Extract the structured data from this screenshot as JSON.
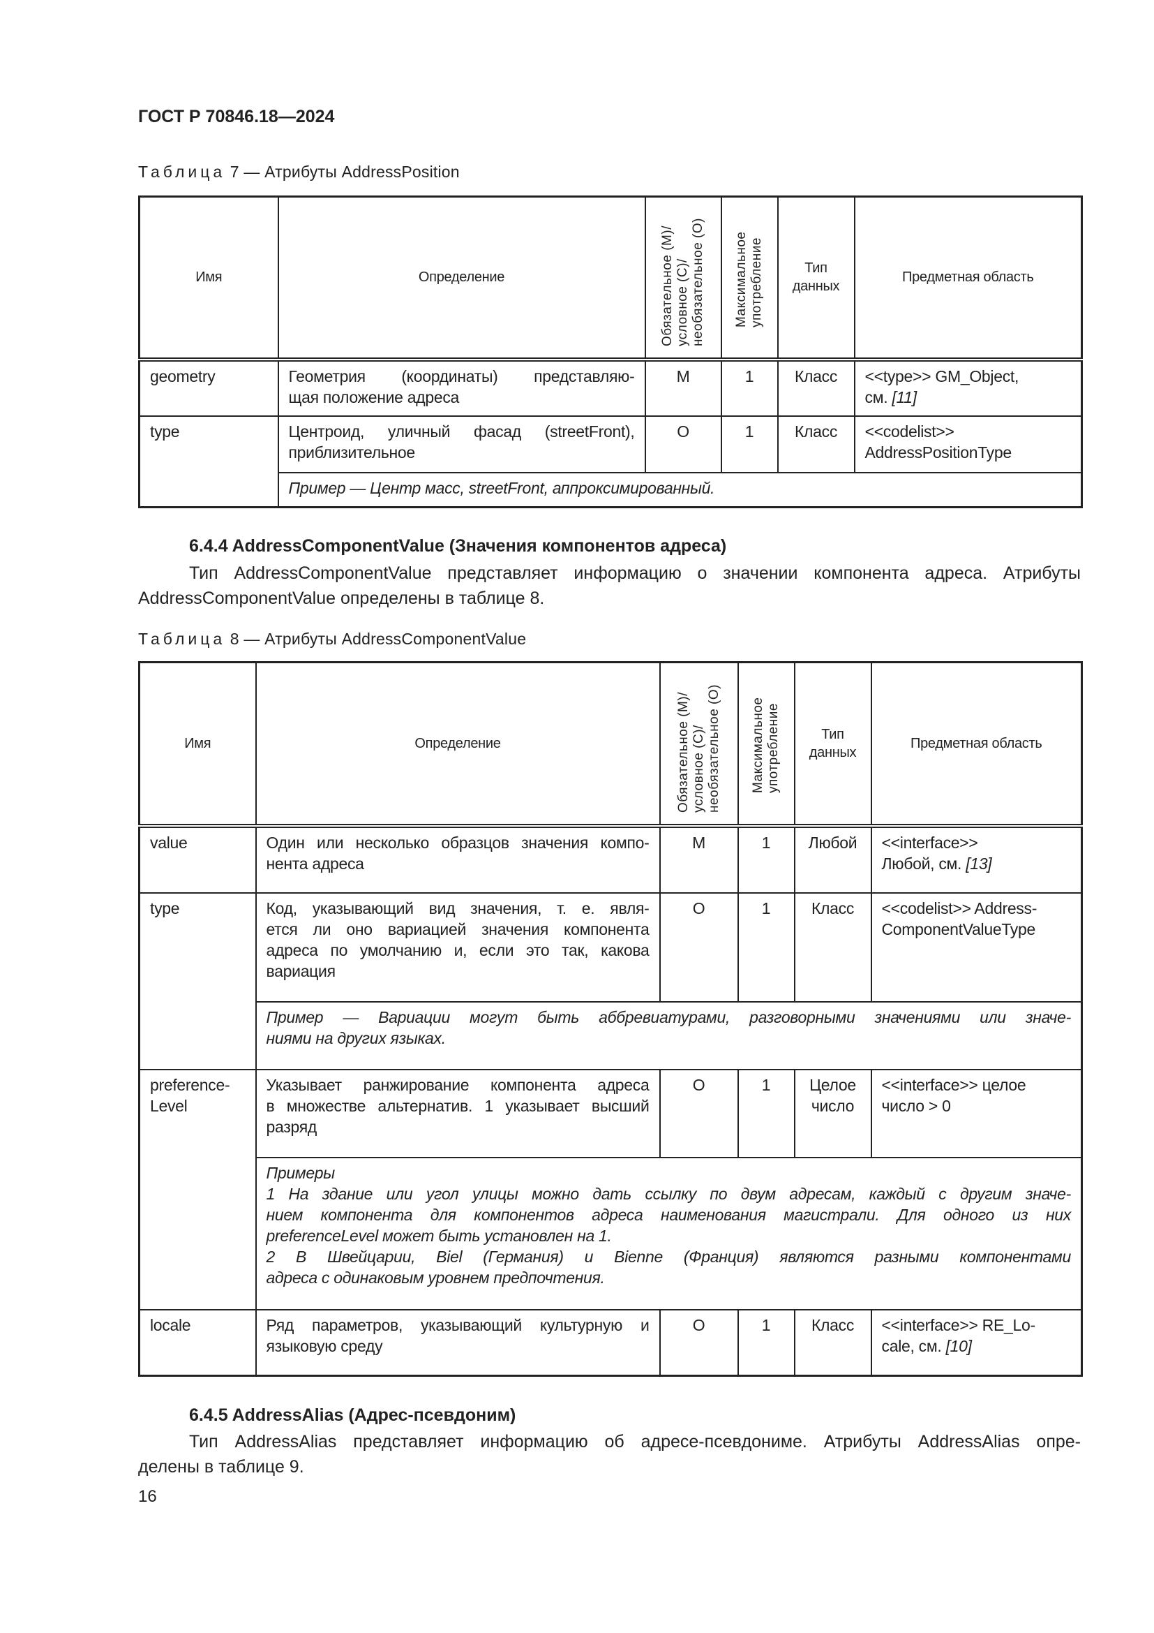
{
  "header": {
    "doc_id": "ГОСТ Р 70846.18—2024"
  },
  "table7": {
    "caption_word": "Таблица",
    "caption_rest": " 7 — Атрибуты AddressPosition",
    "columns": [
      "Имя",
      "Определение",
      "Обязательное (M)/ условное (C)/ необязательное (O)",
      "Максимальное употребление",
      "Тип данных",
      "Предметная область"
    ],
    "rows": [
      {
        "name": "geometry",
        "definition": [
          "Геометрия (координаты) представляю-",
          "щая положение адреса"
        ],
        "obligation": "M",
        "max": "1",
        "type": "Класс",
        "domain": [
          "<<type>> GM_Object,",
          "см. "
        ],
        "domain_ref": "[11]"
      },
      {
        "name": "type",
        "definition": [
          "Центроид, уличный фасад (streetFront),",
          "приблизительное"
        ],
        "obligation": "O",
        "max": "1",
        "type": "Класс",
        "domain": [
          "<<codelist>>",
          "AddressPositionType"
        ],
        "example": [
          "Пример — Центр масс, streetFront, аппроксимированный."
        ]
      }
    ]
  },
  "section_644": {
    "title": "6.4.4 AddressComponentValue (Значения компонентов адреса)",
    "lines": [
      "Тип AddressComponentValue представляет информацию о значении компонента адреса. Атрибуты",
      "AddressComponentValue определены в таблице 8."
    ]
  },
  "table8": {
    "caption_word": "Таблица",
    "caption_rest": " 8 — Атрибуты AddressComponentValue",
    "columns": [
      "Имя",
      "Определение",
      "Обязательное (M)/ условное (C)/ необязательное (O)",
      "Максимальное употребление",
      "Тип данных",
      "Предметная область"
    ],
    "rows": [
      {
        "name": "value",
        "definition": [
          "Один или несколько образцов значения компо-",
          "нента адреса"
        ],
        "obligation": "M",
        "max": "1",
        "type": "Любой",
        "domain": [
          "<<interface>>",
          "Любой, см. "
        ],
        "domain_ref": "[13]"
      },
      {
        "name": "type",
        "definition": [
          "Код, указывающий вид значения, т. е. явля-",
          "ется ли оно вариацией значения компонента",
          "адреса по умолчанию и, если это так, какова",
          "вариация"
        ],
        "obligation": "O",
        "max": "1",
        "type": "Класс",
        "domain": [
          "<<codelist>> Address-",
          "ComponentValueType"
        ],
        "example": [
          "Пример — Вариации могут быть аббревиатурами, разговорными значениями или значе-",
          "ниями на других языках."
        ]
      },
      {
        "name": "preference-Level",
        "definition": [
          "Указывает ранжирование компонента адреса",
          "в множестве альтернатив. 1 указывает высший",
          "разряд"
        ],
        "obligation": "O",
        "max": "1",
        "type": "Целое число",
        "domain": [
          "<<interface>> целое",
          "число > 0"
        ],
        "example": [
          "Примеры",
          "1 На здание или угол улицы можно дать ссылку по двум адресам, каждый с другим значе-",
          "нием компонента для компонентов адреса наименования магистрали. Для одного из них",
          "preferenceLevel может быть установлен на 1.",
          "2 В Швейцарии, Biel (Германия) и Bienne (Франция) являются разными компонентами",
          "адреса с одинаковым уровнем предпочтения."
        ]
      },
      {
        "name": "locale",
        "definition": [
          "Ряд параметров, указывающий культурную и",
          "языковую среду"
        ],
        "obligation": "O",
        "max": "1",
        "type": "Класс",
        "domain": [
          "<<interface>> RE_Lo-",
          "cale, см. "
        ],
        "domain_ref": "[10]"
      }
    ]
  },
  "section_645": {
    "title": "6.4.5 AddressAlias (Адрес-псевдоним)",
    "lines": [
      "Тип AddressAlias представляет информацию об адресе-псевдониме. Атрибуты AddressAlias опре-",
      "делены в таблице 9."
    ]
  },
  "footer": {
    "page_number": "16"
  }
}
